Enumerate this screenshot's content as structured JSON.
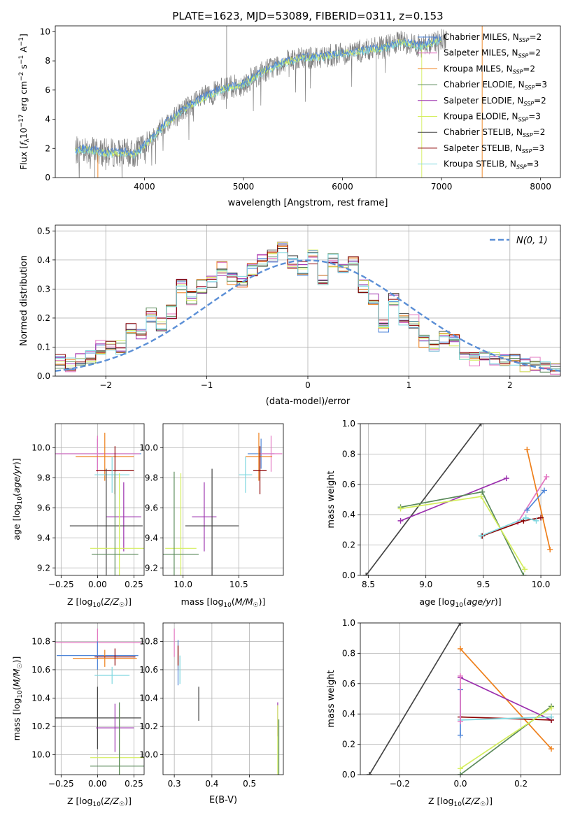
{
  "title": "PLATE=1623, MJD=53089, FIBERID=0311, z=0.153",
  "colors": {
    "chabrier_miles": "#4f86d8",
    "salpeter_miles": "#e377c2",
    "kroupa_miles": "#ee7f1a",
    "chabrier_elodie": "#5a8a5a",
    "salpeter_elodie": "#9b2fae",
    "kroupa_elodie": "#d4ee5e",
    "chabrier_stelib": "#444444",
    "salpeter_stelib": "#8b0000",
    "kroupa_stelib": "#80d8e0",
    "data": "#808080",
    "normal": "#5b8fd6"
  },
  "chart_data": [
    {
      "id": "spectrum",
      "type": "line",
      "title": "PLATE=1623, MJD=53089, FIBERID=0311, z=0.153",
      "xlabel": "wavelength [Angstrom, rest frame]",
      "ylabel": "Flux [fλ10⁻¹⁷ erg cm⁻² s⁻¹ A⁻¹]",
      "xlim": [
        3100,
        8200
      ],
      "ylim": [
        0,
        10.4
      ],
      "xticks": [
        4000,
        5000,
        6000,
        7000,
        8000
      ],
      "yticks": [
        0,
        2,
        4,
        6,
        8,
        10
      ],
      "grid": false,
      "legend_position": "top-right",
      "legend": [
        {
          "label": "Chabrier MILES, N",
          "sub": "SSP",
          "tail": "=2"
        },
        {
          "label": "Salpeter MILES, N",
          "sub": "SSP",
          "tail": "=2"
        },
        {
          "label": "Kroupa MILES, N",
          "sub": "SSP",
          "tail": "=2"
        },
        {
          "label": "Chabrier ELODIE, N",
          "sub": "SSP",
          "tail": "=3"
        },
        {
          "label": "Salpeter ELODIE, N",
          "sub": "SSP",
          "tail": "=2"
        },
        {
          "label": "Kroupa ELODIE, N",
          "sub": "SSP",
          "tail": "=3"
        },
        {
          "label": "Chabrier STELIB, N",
          "sub": "SSP",
          "tail": "=2"
        },
        {
          "label": "Salpeter STELIB, N",
          "sub": "SSP",
          "tail": "=3"
        },
        {
          "label": "Kroupa STELIB, N",
          "sub": "SSP",
          "tail": "=3"
        }
      ],
      "model_trend": {
        "x": [
          3300,
          3400,
          3600,
          3800,
          3900,
          4000,
          4200,
          4400,
          4600,
          4800,
          5000,
          5200,
          5400,
          5600,
          5800,
          6000,
          6200,
          6400,
          6600,
          6800,
          7000
        ],
        "y": [
          1.8,
          2.0,
          1.7,
          1.7,
          1.6,
          2.2,
          3.6,
          4.7,
          5.5,
          6.1,
          6.4,
          7.3,
          7.9,
          8.2,
          8.3,
          8.5,
          8.7,
          8.9,
          9.3,
          9.0,
          9.5
        ]
      }
    },
    {
      "id": "residuals",
      "type": "line",
      "xlabel": "(data-model)/error",
      "ylabel": "Normed distribution",
      "xlim": [
        -2.5,
        2.5
      ],
      "ylim": [
        0,
        0.52
      ],
      "xticks": [
        -2,
        -1,
        0,
        1,
        2
      ],
      "yticks": [
        0.0,
        0.1,
        0.2,
        0.3,
        0.4,
        0.5
      ],
      "grid": true,
      "legend_position": "top-right",
      "legend_label": "N(0, 1)",
      "bin_centers": [
        -2.45,
        -2.35,
        -2.25,
        -2.15,
        -2.05,
        -1.95,
        -1.85,
        -1.75,
        -1.65,
        -1.55,
        -1.45,
        -1.35,
        -1.25,
        -1.15,
        -1.05,
        -0.95,
        -0.85,
        -0.75,
        -0.65,
        -0.55,
        -0.45,
        -0.35,
        -0.25,
        -0.15,
        -0.05,
        0.05,
        0.15,
        0.25,
        0.35,
        0.45,
        0.55,
        0.65,
        0.75,
        0.85,
        0.95,
        1.05,
        1.15,
        1.25,
        1.35,
        1.45,
        1.55,
        1.65,
        1.75,
        1.85,
        1.95,
        2.05,
        2.15,
        2.25,
        2.35,
        2.45
      ],
      "hist_mean": [
        0.05,
        0.04,
        0.06,
        0.07,
        0.1,
        0.11,
        0.1,
        0.17,
        0.14,
        0.21,
        0.18,
        0.22,
        0.31,
        0.27,
        0.31,
        0.33,
        0.37,
        0.34,
        0.33,
        0.37,
        0.4,
        0.41,
        0.44,
        0.39,
        0.37,
        0.41,
        0.33,
        0.4,
        0.36,
        0.4,
        0.31,
        0.26,
        0.17,
        0.26,
        0.2,
        0.19,
        0.12,
        0.11,
        0.13,
        0.12,
        0.08,
        0.06,
        0.07,
        0.06,
        0.05,
        0.06,
        0.04,
        0.04,
        0.03,
        0.03
      ],
      "normal_curve": "N(0,1) probability density"
    },
    {
      "id": "age-vs-z",
      "type": "scatter",
      "xlabel": "Z [log10(Z/Z☉)]",
      "ylabel": "age  [log10(age/yr)]",
      "xlim": [
        -0.29,
        0.32
      ],
      "ylim": [
        9.15,
        10.16
      ],
      "xticks": [
        -0.25,
        0.0,
        0.25
      ],
      "yticks": [
        9.2,
        9.4,
        9.6,
        9.8,
        10.0
      ],
      "grid": true,
      "points": [
        {
          "model": "chabrier_miles",
          "x": 0.0,
          "y": 9.96,
          "xerr": 0.3,
          "yerr": 0.1
        },
        {
          "model": "salpeter_miles",
          "x": 0.0,
          "y": 9.96,
          "xerr": 0.29,
          "yerr": 0.12
        },
        {
          "model": "kroupa_miles",
          "x": 0.05,
          "y": 9.94,
          "xerr": 0.2,
          "yerr": 0.16
        },
        {
          "model": "salpeter_stelib",
          "x": 0.12,
          "y": 9.85,
          "xerr": 0.13,
          "yerr": 0.16
        },
        {
          "model": "kroupa_stelib",
          "x": 0.1,
          "y": 9.82,
          "xerr": 0.12,
          "yerr": 0.12
        },
        {
          "model": "salpeter_elodie",
          "x": 0.18,
          "y": 9.54,
          "xerr": 0.12,
          "yerr": 0.23
        },
        {
          "model": "chabrier_stelib",
          "x": 0.06,
          "y": 9.48,
          "xerr": 0.25,
          "yerr": 0.38
        },
        {
          "model": "kroupa_elodie",
          "x": 0.15,
          "y": 9.33,
          "xerr": 0.2,
          "yerr": 0.5
        },
        {
          "model": "chabrier_elodie",
          "x": 0.12,
          "y": 9.29,
          "xerr": 0.16,
          "yerr": 0.55
        }
      ]
    },
    {
      "id": "age-vs-mass",
      "type": "scatter",
      "xlabel": "mass [log10(M/M☉)]",
      "xlim": [
        9.82,
        10.9
      ],
      "ylim": [
        9.15,
        10.16
      ],
      "xticks": [
        10.0,
        10.5
      ],
      "yticks": [
        9.2,
        9.4,
        9.6,
        9.8,
        10.0
      ],
      "grid": true,
      "points": [
        {
          "model": "chabrier_miles",
          "x": 10.7,
          "y": 9.96,
          "xerr": 0.12,
          "yerr": 0.1
        },
        {
          "model": "salpeter_miles",
          "x": 10.79,
          "y": 9.96,
          "xerr": 0.1,
          "yerr": 0.12
        },
        {
          "model": "kroupa_miles",
          "x": 10.68,
          "y": 9.94,
          "xerr": 0.12,
          "yerr": 0.16
        },
        {
          "model": "salpeter_stelib",
          "x": 10.69,
          "y": 9.85,
          "xerr": 0.06,
          "yerr": 0.16
        },
        {
          "model": "kroupa_stelib",
          "x": 10.56,
          "y": 9.82,
          "xerr": 0.06,
          "yerr": 0.12
        },
        {
          "model": "salpeter_elodie",
          "x": 10.19,
          "y": 9.54,
          "xerr": 0.11,
          "yerr": 0.23
        },
        {
          "model": "chabrier_stelib",
          "x": 10.26,
          "y": 9.48,
          "xerr": 0.24,
          "yerr": 0.38
        },
        {
          "model": "kroupa_elodie",
          "x": 9.98,
          "y": 9.33,
          "xerr": 0.14,
          "yerr": 0.5
        },
        {
          "model": "chabrier_elodie",
          "x": 9.92,
          "y": 9.29,
          "xerr": 0.22,
          "yerr": 0.55
        }
      ]
    },
    {
      "id": "mass-weight-vs-age",
      "type": "line",
      "xlabel": "age  [log10(age/yr)]",
      "ylabel": "mass weight",
      "xlim": [
        8.43,
        10.17
      ],
      "ylim": [
        0,
        1.0
      ],
      "xticks": [
        8.5,
        9.0,
        9.5,
        10.0
      ],
      "yticks": [
        0.0,
        0.2,
        0.4,
        0.6,
        0.8,
        1.0
      ],
      "grid": true,
      "series": [
        {
          "model": "chabrier_stelib",
          "x": [
            8.48,
            9.48
          ],
          "y": [
            0.0,
            1.0
          ]
        },
        {
          "model": "kroupa_miles",
          "x": [
            9.88,
            10.08
          ],
          "y": [
            0.83,
            0.17
          ]
        },
        {
          "model": "salpeter_miles",
          "x": [
            9.8,
            10.05
          ],
          "y": [
            0.35,
            0.65
          ]
        },
        {
          "model": "chabrier_miles",
          "x": [
            9.88,
            10.03
          ],
          "y": [
            0.43,
            0.56
          ]
        },
        {
          "model": "salpeter_elodie",
          "x": [
            8.78,
            9.7
          ],
          "y": [
            0.36,
            0.64
          ]
        },
        {
          "model": "chabrier_elodie",
          "x": [
            8.78,
            9.49,
            9.85
          ],
          "y": [
            0.45,
            0.55,
            0.0
          ]
        },
        {
          "model": "kroupa_elodie",
          "x": [
            8.78,
            9.48,
            9.86
          ],
          "y": [
            0.44,
            0.52,
            0.04
          ]
        },
        {
          "model": "salpeter_stelib",
          "x": [
            9.49,
            9.85,
            10.0
          ],
          "y": [
            0.26,
            0.36,
            0.38
          ]
        },
        {
          "model": "kroupa_stelib",
          "x": [
            9.48,
            9.87,
            9.96
          ],
          "y": [
            0.26,
            0.38,
            0.36
          ]
        }
      ]
    },
    {
      "id": "mass-vs-z",
      "type": "scatter",
      "xlabel": "Z [log10(Z/Z☉)]",
      "ylabel": "mass [log10(M/M☉)]",
      "xlim": [
        -0.29,
        0.32
      ],
      "ylim": [
        9.86,
        10.93
      ],
      "xticks": [
        -0.25,
        0.0,
        0.25
      ],
      "yticks": [
        10.0,
        10.2,
        10.4,
        10.6,
        10.8
      ],
      "grid": true,
      "points": [
        {
          "model": "salpeter_miles",
          "x": 0.0,
          "y": 10.79,
          "xerr": 0.3,
          "yerr": 0.1
        },
        {
          "model": "chabrier_miles",
          "x": 0.0,
          "y": 10.7,
          "xerr": 0.28,
          "yerr": 0.1
        },
        {
          "model": "kroupa_miles",
          "x": 0.05,
          "y": 10.68,
          "xerr": 0.22,
          "yerr": 0.06
        },
        {
          "model": "salpeter_stelib",
          "x": 0.12,
          "y": 10.69,
          "xerr": 0.14,
          "yerr": 0.06
        },
        {
          "model": "kroupa_stelib",
          "x": 0.1,
          "y": 10.56,
          "xerr": 0.12,
          "yerr": 0.06
        },
        {
          "model": "chabrier_stelib",
          "x": 0.0,
          "y": 10.26,
          "xerr": 0.3,
          "yerr": 0.22
        },
        {
          "model": "salpeter_elodie",
          "x": 0.12,
          "y": 10.19,
          "xerr": 0.13,
          "yerr": 0.17
        },
        {
          "model": "kroupa_elodie",
          "x": 0.15,
          "y": 9.98,
          "xerr": 0.2,
          "yerr": 0.35
        },
        {
          "model": "chabrier_elodie",
          "x": 0.15,
          "y": 9.92,
          "xerr": 0.2,
          "yerr": 0.45
        }
      ]
    },
    {
      "id": "mass-vs-ebv",
      "type": "scatter",
      "xlabel": "E(B-V)",
      "xlim": [
        0.27,
        0.59
      ],
      "ylim": [
        9.86,
        10.93
      ],
      "xticks": [
        0.3,
        0.4,
        0.5
      ],
      "yticks": [
        10.0,
        10.2,
        10.4,
        10.6,
        10.8
      ],
      "grid": true,
      "points": [
        {
          "model": "salpeter_miles",
          "x": 0.3,
          "y": 10.79,
          "yerr": 0.1
        },
        {
          "model": "kroupa_miles",
          "x": 0.31,
          "y": 10.7,
          "yerr": 0.1
        },
        {
          "model": "chabrier_miles",
          "x": 0.31,
          "y": 10.65,
          "yerr": 0.16
        },
        {
          "model": "salpeter_stelib",
          "x": 0.31,
          "y": 10.7,
          "yerr": 0.07
        },
        {
          "model": "kroupa_stelib",
          "x": 0.315,
          "y": 10.6,
          "yerr": 0.1
        },
        {
          "model": "chabrier_stelib",
          "x": 0.365,
          "y": 10.36,
          "yerr": 0.12
        },
        {
          "model": "salpeter_elodie",
          "x": 0.575,
          "y": 10.25,
          "yerr": 0.12
        },
        {
          "model": "kroupa_elodie",
          "x": 0.575,
          "y": 10.1,
          "yerr": 0.25
        },
        {
          "model": "chabrier_elodie",
          "x": 0.578,
          "y": 10.05,
          "yerr": 0.2
        }
      ]
    },
    {
      "id": "mass-weight-vs-z",
      "type": "line",
      "xlabel": "Z [log10(Z/Z☉)]",
      "ylabel": "mass weight",
      "xlim": [
        -0.33,
        0.33
      ],
      "ylim": [
        0,
        1.0
      ],
      "xticks": [
        -0.2,
        0.0,
        0.2
      ],
      "yticks": [
        0.0,
        0.2,
        0.4,
        0.6,
        0.8,
        1.0
      ],
      "grid": true,
      "series": [
        {
          "model": "chabrier_stelib",
          "x": [
            -0.3,
            0.0
          ],
          "y": [
            0.0,
            1.0
          ]
        },
        {
          "model": "kroupa_miles",
          "x": [
            0.0,
            0.3
          ],
          "y": [
            0.83,
            0.17
          ]
        },
        {
          "model": "salpeter_elodie",
          "x": [
            0.0,
            0.3
          ],
          "y": [
            0.64,
            0.36
          ]
        },
        {
          "model": "salpeter_stelib",
          "x": [
            0.0,
            0.3
          ],
          "y": [
            0.38,
            0.36
          ]
        },
        {
          "model": "kroupa_stelib",
          "x": [
            0.0,
            0.3
          ],
          "y": [
            0.36,
            0.38
          ]
        },
        {
          "model": "chabrier_elodie",
          "x": [
            0.0,
            0.3
          ],
          "y": [
            0.0,
            0.45
          ]
        },
        {
          "model": "kroupa_elodie",
          "x": [
            0.0,
            0.3
          ],
          "y": [
            0.04,
            0.44
          ]
        },
        {
          "model": "chabrier_miles",
          "x": [
            0.0,
            0.0
          ],
          "y": [
            0.26,
            0.56
          ]
        },
        {
          "model": "salpeter_miles",
          "x": [
            0.0,
            0.0
          ],
          "y": [
            0.35,
            0.65
          ]
        }
      ]
    }
  ]
}
